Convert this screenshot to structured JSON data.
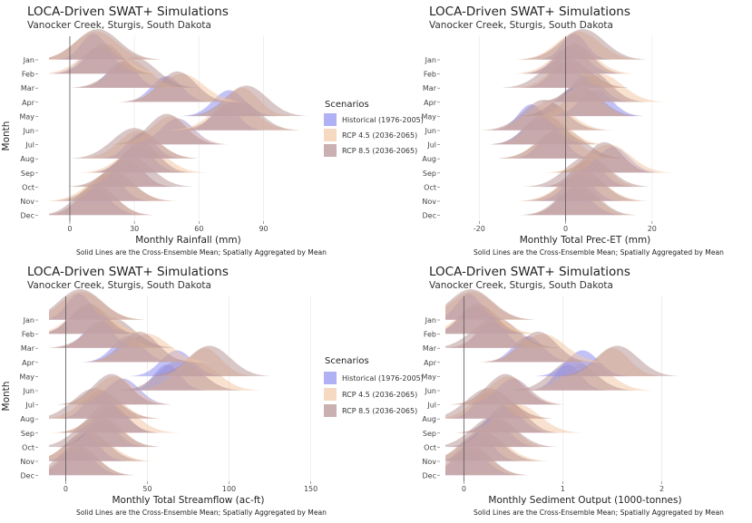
{
  "legend": {
    "title": "Scenarios",
    "items": [
      {
        "label": "Historical (1976-2005)",
        "color": "#8f8ff0"
      },
      {
        "label": "RCP 4.5 (2036-2065)",
        "color": "#f2c9a6"
      },
      {
        "label": "RCP 8.5 (2036-2065)",
        "color": "#b48f8f"
      }
    ]
  },
  "chart_data": [
    {
      "type": "ridgeline",
      "title": "LOCA-Driven SWAT+ Simulations",
      "subtitle": "Vanocker Creek, Sturgis, South Dakota",
      "xlabel": "Monthly Rainfall (mm)",
      "ylabel": "Month",
      "caption": "Solid Lines are the Cross-Ensemble Mean; Spatially Aggregated by Mean",
      "xlim": [
        -8,
        118
      ],
      "xticks": [
        0,
        30,
        60,
        90
      ],
      "categories": [
        "Jan",
        "Feb",
        "Mar",
        "Apr",
        "May",
        "Jun",
        "Jul",
        "Aug",
        "Sep",
        "Oct",
        "Nov",
        "Dec"
      ],
      "series": [
        {
          "name": "Historical (1976-2005)",
          "values": [
            11,
            13,
            24,
            45,
            74,
            72,
            50,
            33,
            31,
            27,
            18,
            11
          ]
        },
        {
          "name": "RCP 4.5 (2036-2065)",
          "values": [
            12,
            15,
            28,
            52,
            80,
            76,
            47,
            32,
            34,
            25,
            19,
            13
          ]
        },
        {
          "name": "RCP 8.5 (2036-2065)",
          "values": [
            13,
            16,
            30,
            50,
            82,
            78,
            45,
            30,
            33,
            28,
            20,
            12
          ]
        }
      ]
    },
    {
      "type": "ridgeline",
      "title": "LOCA-Driven SWAT+ Simulations",
      "subtitle": "Vanocker Creek, Sturgis, South Dakota",
      "xlabel": "Monthly Total Prec-ET (mm)",
      "ylabel": "",
      "caption": "Solid Lines are the Cross-Ensemble Mean; Spatially Aggregated by Mean",
      "xlim": [
        -27,
        36
      ],
      "xticks": [
        -20,
        0,
        20
      ],
      "categories": [
        "Jan",
        "Feb",
        "Mar",
        "Apr",
        "May",
        "Jun",
        "Jul",
        "Aug",
        "Sep",
        "Oct",
        "Nov",
        "Dec"
      ],
      "series": [
        {
          "name": "Historical (1976-2005)",
          "values": [
            2,
            1,
            0,
            5,
            7,
            -8,
            -6,
            -3,
            11,
            5,
            3,
            2
          ]
        },
        {
          "name": "RCP 4.5 (2036-2065)",
          "values": [
            3,
            2,
            1,
            8,
            4,
            -4,
            -4,
            -2,
            10,
            6,
            4,
            3
          ]
        },
        {
          "name": "RCP 8.5 (2036-2065)",
          "values": [
            4,
            2,
            0,
            6,
            3,
            -5,
            -5,
            -1,
            9,
            5,
            4,
            3
          ]
        }
      ]
    },
    {
      "type": "ridgeline",
      "title": "LOCA-Driven SWAT+ Simulations",
      "subtitle": "Vanocker Creek, Sturgis, South Dakota",
      "xlabel": "Monthly Total Streamflow (ac-ft)",
      "ylabel": "Month",
      "caption": "Solid Lines are the Cross-Ensemble Mean; Spatially Aggregated by Mean",
      "xlim": [
        -8,
        158
      ],
      "xticks": [
        0,
        50,
        100,
        150
      ],
      "categories": [
        "Jan",
        "Feb",
        "Mar",
        "Apr",
        "May",
        "Jun",
        "Jul",
        "Aug",
        "Sep",
        "Oct",
        "Nov",
        "Dec"
      ],
      "series": [
        {
          "name": "Historical (1976-2005)",
          "values": [
            8,
            12,
            20,
            38,
            68,
            62,
            35,
            20,
            28,
            22,
            12,
            7
          ]
        },
        {
          "name": "RCP 4.5 (2036-2065)",
          "values": [
            10,
            15,
            25,
            50,
            85,
            80,
            30,
            22,
            30,
            25,
            14,
            8
          ]
        },
        {
          "name": "RCP 8.5 (2036-2065)",
          "values": [
            9,
            14,
            28,
            45,
            88,
            70,
            28,
            18,
            26,
            20,
            13,
            7
          ]
        }
      ]
    },
    {
      "type": "ridgeline",
      "title": "LOCA-Driven SWAT+ Simulations",
      "subtitle": "Vanocker Creek, Sturgis, South Dakota",
      "xlabel": "Monthly Sediment Output (1000-tonnes)",
      "ylabel": "",
      "caption": "Solid Lines are the Cross-Ensemble Mean; Spatially Aggregated by Mean",
      "xlim": [
        -0.15,
        2.6
      ],
      "xticks": [
        0,
        1,
        2
      ],
      "categories": [
        "Jan",
        "Feb",
        "Mar",
        "Apr",
        "May",
        "Jun",
        "Jul",
        "Aug",
        "Sep",
        "Oct",
        "Nov",
        "Dec"
      ],
      "series": [
        {
          "name": "Historical (1976-2005)",
          "values": [
            0.05,
            0.12,
            0.28,
            0.65,
            1.2,
            1.05,
            0.5,
            0.25,
            0.42,
            0.3,
            0.15,
            0.06
          ]
        },
        {
          "name": "RCP 4.5 (2036-2065)",
          "values": [
            0.08,
            0.15,
            0.35,
            0.8,
            1.5,
            1.25,
            0.45,
            0.3,
            0.55,
            0.35,
            0.2,
            0.08
          ]
        },
        {
          "name": "RCP 8.5 (2036-2065)",
          "values": [
            0.07,
            0.14,
            0.32,
            0.75,
            1.55,
            1.1,
            0.42,
            0.25,
            0.45,
            0.3,
            0.18,
            0.07
          ]
        }
      ]
    }
  ]
}
